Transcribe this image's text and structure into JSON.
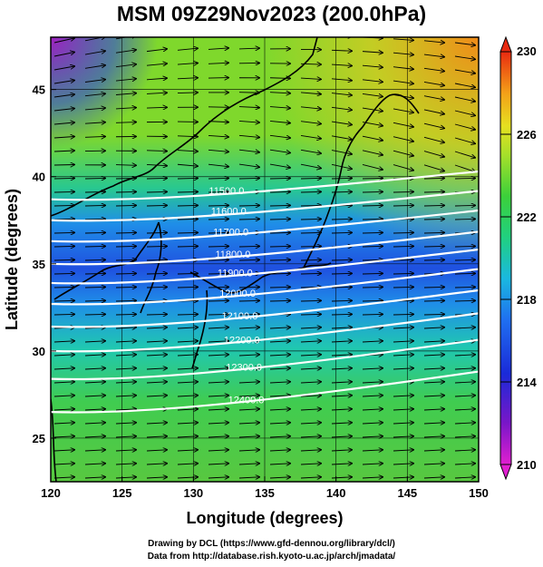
{
  "title": "MSM 09Z29Nov2023 (200.0hPa)",
  "x_axis": {
    "label": "Longitude (degrees)",
    "ticks": [
      "120",
      "125",
      "130",
      "135",
      "140",
      "145",
      "150"
    ]
  },
  "y_axis": {
    "label": "Latitude  (degrees)",
    "ticks": [
      "25",
      "30",
      "35",
      "40",
      "45"
    ]
  },
  "colorbar": {
    "ticks": [
      "210",
      "214",
      "218",
      "222",
      "226",
      "230"
    ],
    "min": 210,
    "max": 230
  },
  "contours": [
    {
      "label": "11500.0",
      "lat": 38.7
    },
    {
      "label": "11600.0",
      "lat": 37.5
    },
    {
      "label": "11700.0",
      "lat": 36.3
    },
    {
      "label": "11800.0",
      "lat": 35.0
    },
    {
      "label": "11900.0",
      "lat": 33.9
    },
    {
      "label": "12000.0",
      "lat": 32.7
    },
    {
      "label": "12100.0",
      "lat": 31.4
    },
    {
      "label": "12200.0",
      "lat": 30.0
    },
    {
      "label": "12300.0",
      "lat": 28.4
    },
    {
      "label": "12400.0",
      "lat": 26.5
    }
  ],
  "credits": {
    "line1": "Drawing by DCL (https://www.gfd-dennou.org/library/dcl/)",
    "line2": "Data from http://database.rish.kyoto-u.ac.jp/arch/jmadata/"
  }
}
